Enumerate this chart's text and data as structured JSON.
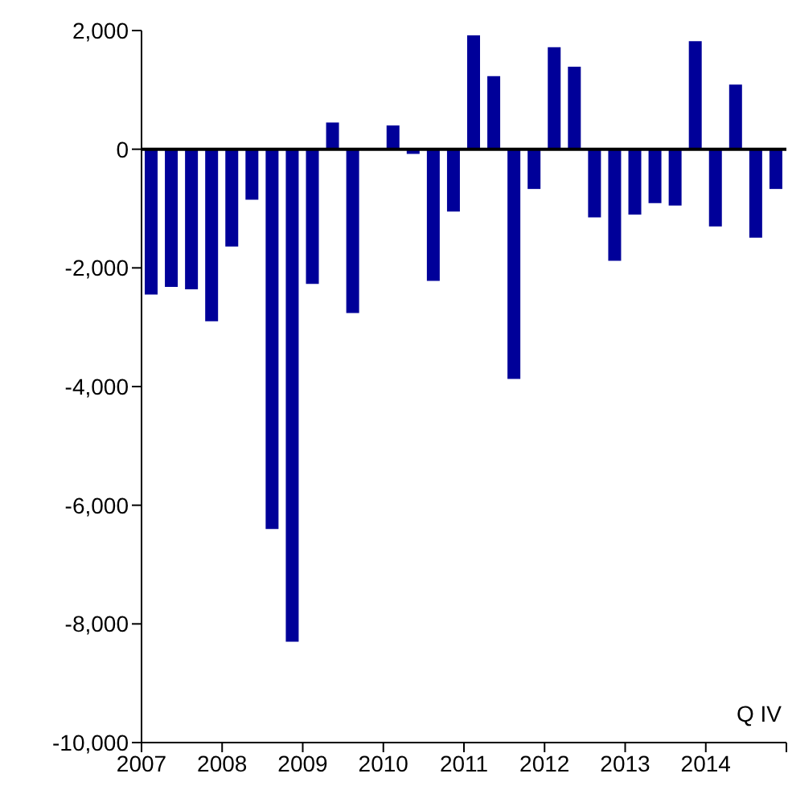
{
  "chart_data": {
    "type": "bar",
    "x": [
      2007.125,
      2007.375,
      2007.625,
      2007.875,
      2008.125,
      2008.375,
      2008.625,
      2008.875,
      2009.125,
      2009.375,
      2009.625,
      2009.875,
      2010.125,
      2010.375,
      2010.625,
      2010.875,
      2011.125,
      2011.375,
      2011.625,
      2011.875,
      2012.125,
      2012.375,
      2012.625,
      2012.875,
      2013.125,
      2013.375,
      2013.625,
      2013.875,
      2014.125,
      2014.375,
      2014.625,
      2014.875
    ],
    "values": [
      -2450,
      -2320,
      -2360,
      -2900,
      -1640,
      -850,
      -6400,
      -8300,
      -2270,
      450,
      -2760,
      0,
      400,
      -80,
      -2220,
      -1050,
      1920,
      1230,
      -3870,
      -670,
      1720,
      1390,
      -1150,
      -1880,
      -1100,
      -910,
      -950,
      1820,
      -1300,
      1090,
      -1490,
      -670
    ],
    "color": "#000099",
    "xlim": [
      2007,
      2015
    ],
    "xticks": [
      2007,
      2008,
      2009,
      2010,
      2011,
      2012,
      2013,
      2014,
      {
        "value": 2015,
        "label": null
      }
    ],
    "ylim": [
      -10000,
      2000
    ],
    "yticks": [
      {
        "value": -10000,
        "label": "-10,000"
      },
      {
        "value": -8000,
        "label": "-8,000"
      },
      {
        "value": -6000,
        "label": "-6,000"
      },
      {
        "value": -4000,
        "label": "-4,000"
      },
      {
        "value": -2000,
        "label": "-2,000"
      },
      0,
      {
        "value": 2000,
        "label": "2,000"
      }
    ],
    "ref_lines": [
      {
        "axis": "y",
        "value": 0,
        "color": "#000000"
      }
    ],
    "annotations": [
      "Q IV"
    ]
  }
}
